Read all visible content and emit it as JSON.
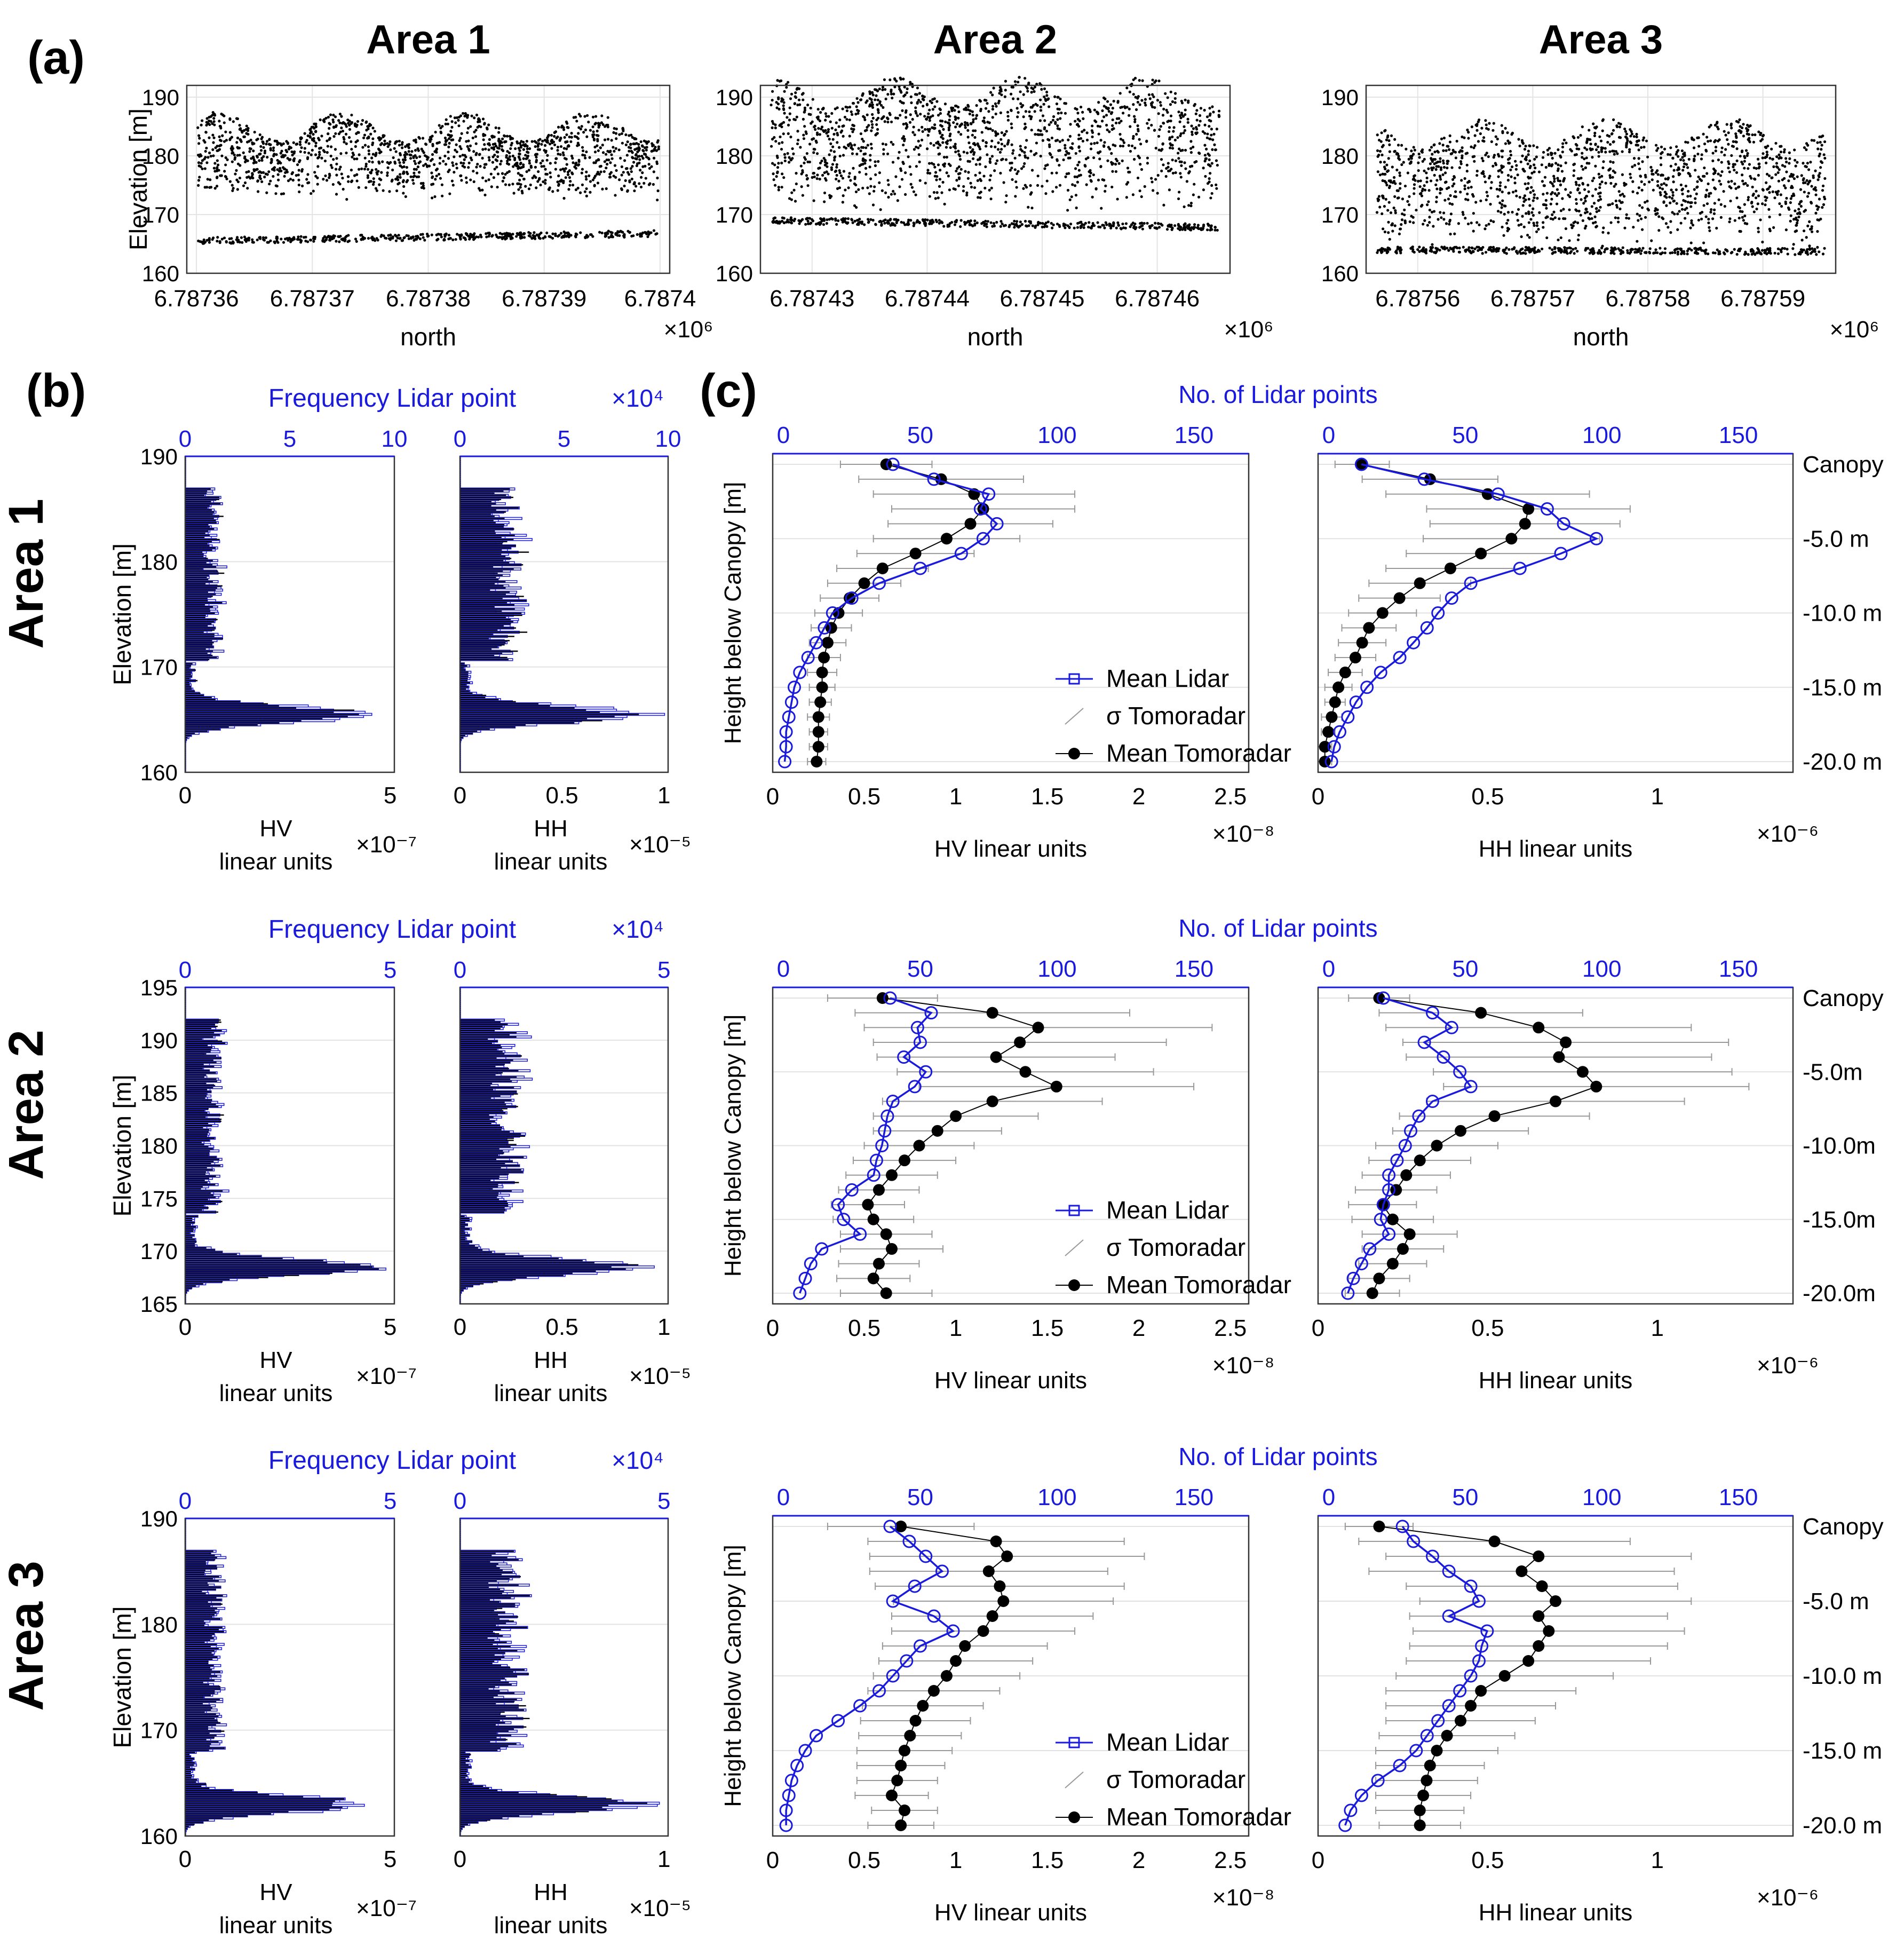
{
  "panel_labels": {
    "a": "(a)",
    "b": "(b)",
    "c": "(c)"
  },
  "row_labels": [
    "Area 1",
    "Area 2",
    "Area 3"
  ],
  "chart_data": [
    {
      "id": "a",
      "type": "scatter",
      "titles": [
        "Area 1",
        "Area 2",
        "Area 3"
      ],
      "xlabel": "north",
      "ylabel": "Elevation [m]",
      "x_multiplier": "×10⁶",
      "ylim": [
        160,
        192
      ],
      "yticks": [
        "160",
        "170",
        "180",
        "190"
      ],
      "xticks": [
        [
          "6.78736",
          "6.78737",
          "6.78738",
          "6.78739",
          "6.7874"
        ],
        [
          "6.78743",
          "6.78744",
          "6.78745",
          "6.78746"
        ],
        [
          "6.78756",
          "6.78757",
          "6.78758",
          "6.78759"
        ]
      ],
      "ground_elevation": [
        165.5,
        169.0,
        164.0
      ],
      "canopy_band": [
        [
          172,
          187
        ],
        [
          170,
          193
        ],
        [
          164,
          186
        ]
      ]
    },
    {
      "id": "b",
      "type": "bar",
      "top_label": "Frequency Lidar point",
      "top_multiplier": "×10⁴",
      "ylabel": "Elevation [m]",
      "linear_units": "linear units",
      "hv_label": "HV",
      "hh_label": "HH",
      "areas": [
        {
          "name": "Area 1",
          "ylim": [
            160,
            190
          ],
          "yticks": [
            "160",
            "170",
            "180",
            "190"
          ],
          "top_ticks": [
            "0",
            "5",
            "10"
          ],
          "hv_ticks": [
            "0",
            "5"
          ],
          "hv_mult": "×10⁻⁷",
          "hh_ticks": [
            "0",
            "0.5",
            "1"
          ],
          "hh_mult": "×10⁻⁵",
          "ground_peak": 165.5
        },
        {
          "name": "Area 2",
          "ylim": [
            165,
            195
          ],
          "yticks": [
            "165",
            "170",
            "175",
            "180",
            "185",
            "190",
            "195"
          ],
          "top_ticks": [
            "0",
            "5"
          ],
          "hv_ticks": [
            "0",
            "5"
          ],
          "hv_mult": "×10⁻⁷",
          "hh_ticks": [
            "0",
            "0.5",
            "1"
          ],
          "hh_mult": "×10⁻⁵",
          "ground_peak": 168.5
        },
        {
          "name": "Area 3",
          "ylim": [
            160,
            190
          ],
          "yticks": [
            "160",
            "170",
            "180",
            "190"
          ],
          "top_ticks": [
            "0",
            "5"
          ],
          "hv_ticks": [
            "0",
            "5"
          ],
          "hv_mult": "×10⁻⁷",
          "hh_ticks": [
            "0",
            "1"
          ],
          "hh_mult": "×10⁻⁵",
          "ground_peak": 163.0
        }
      ]
    },
    {
      "id": "c",
      "type": "line",
      "ylabel": "Height below Canopy [m]",
      "top_labels": [
        "No. of Lidar points",
        "No. of Lidar points",
        "No. of Lidar points"
      ],
      "top_ticks": [
        "0",
        "50",
        "100",
        "150"
      ],
      "hv_xlabel": "HV linear units",
      "hv_mult": "×10⁻⁸",
      "hh_xlabel": "HH linear units",
      "hh_mult": "×10⁻⁶",
      "hv_ticks": [
        "0",
        "0.5",
        "1",
        "1.5",
        "2",
        "2.5"
      ],
      "hh_ticks": [
        "0",
        "0.5",
        "1"
      ],
      "right_ticks": [
        [
          "Canopy",
          "-5.0 m",
          "-10.0 m",
          "-15.0 m",
          "-20.0 m"
        ],
        [
          "Canopy",
          "-5.0m",
          "-10.0m",
          "-15.0m",
          "-20.0m"
        ],
        [
          "Canopy",
          "-5.0 m",
          "-10.0 m",
          "-15.0 m",
          "-20.0 m"
        ]
      ],
      "legend": [
        "Mean Lidar",
        "σ Tomoradar",
        "Mean Tomoradar"
      ],
      "depths": [
        0,
        -1,
        -2,
        -3,
        -4,
        -5,
        -6,
        -7,
        -8,
        -9,
        -10,
        -11,
        -12,
        -13,
        -14,
        -15,
        -16,
        -17,
        -18,
        -19,
        -20
      ],
      "series": [
        {
          "area": "Area 1",
          "side": "HV",
          "lidar": [
            40,
            55,
            75,
            72,
            78,
            73,
            65,
            50,
            35,
            25,
            18,
            15,
            12,
            9,
            6,
            4,
            3,
            2,
            1,
            1,
            0.5
          ],
          "tomo_mean": [
            0.62,
            0.92,
            1.1,
            1.15,
            1.08,
            0.95,
            0.78,
            0.6,
            0.5,
            0.42,
            0.36,
            0.32,
            0.3,
            0.28,
            0.27,
            0.27,
            0.26,
            0.25,
            0.25,
            0.25,
            0.24
          ],
          "tomo_sd": [
            0.25,
            0.45,
            0.55,
            0.5,
            0.45,
            0.4,
            0.32,
            0.25,
            0.2,
            0.16,
            0.13,
            0.11,
            0.1,
            0.09,
            0.08,
            0.07,
            0.06,
            0.06,
            0.05,
            0.05,
            0.05
          ]
        },
        {
          "area": "Area 1",
          "side": "HH",
          "lidar": [
            12,
            35,
            62,
            80,
            86,
            98,
            85,
            70,
            52,
            45,
            40,
            36,
            31,
            26,
            19,
            14,
            10,
            7,
            4,
            2,
            1
          ],
          "tomo_mean": [
            0.13,
            0.33,
            0.5,
            0.62,
            0.61,
            0.57,
            0.48,
            0.39,
            0.3,
            0.24,
            0.19,
            0.15,
            0.13,
            0.11,
            0.08,
            0.06,
            0.05,
            0.04,
            0.03,
            0.02,
            0.02
          ],
          "tomo_sd": [
            0.08,
            0.2,
            0.3,
            0.3,
            0.28,
            0.26,
            0.22,
            0.19,
            0.15,
            0.12,
            0.1,
            0.08,
            0.07,
            0.06,
            0.05,
            0.04,
            0.03,
            0.03,
            0.02,
            0.02,
            0.02
          ]
        },
        {
          "area": "Area 2",
          "side": "HV",
          "lidar": [
            39,
            54,
            49,
            50,
            44,
            52,
            48,
            40,
            38,
            37,
            36,
            34,
            33,
            25,
            20,
            22,
            28,
            14,
            10,
            8,
            6
          ],
          "tomo_mean": [
            0.6,
            1.2,
            1.45,
            1.35,
            1.22,
            1.38,
            1.55,
            1.2,
            1.0,
            0.9,
            0.8,
            0.72,
            0.65,
            0.58,
            0.52,
            0.55,
            0.62,
            0.65,
            0.58,
            0.55,
            0.62
          ],
          "tomo_sd": [
            0.3,
            0.75,
            0.95,
            0.8,
            0.65,
            0.7,
            0.75,
            0.6,
            0.45,
            0.35,
            0.3,
            0.28,
            0.25,
            0.22,
            0.2,
            0.22,
            0.25,
            0.28,
            0.22,
            0.2,
            0.25
          ],
          "sparse_markers": true
        },
        {
          "area": "Area 2",
          "side": "HH",
          "lidar": [
            20,
            38,
            45,
            35,
            42,
            48,
            52,
            38,
            33,
            30,
            28,
            25,
            22,
            22,
            20,
            19,
            22,
            15,
            12,
            9,
            7
          ],
          "tomo_mean": [
            0.18,
            0.48,
            0.65,
            0.73,
            0.71,
            0.78,
            0.82,
            0.7,
            0.52,
            0.42,
            0.35,
            0.3,
            0.26,
            0.23,
            0.19,
            0.22,
            0.27,
            0.25,
            0.22,
            0.18,
            0.16
          ],
          "tomo_sd": [
            0.09,
            0.3,
            0.45,
            0.48,
            0.45,
            0.44,
            0.45,
            0.38,
            0.28,
            0.2,
            0.18,
            0.15,
            0.13,
            0.12,
            0.1,
            0.12,
            0.14,
            0.12,
            0.1,
            0.09,
            0.08
          ]
        },
        {
          "area": "Area 3",
          "side": "HV",
          "lidar": [
            39,
            46,
            52,
            58,
            48,
            40,
            55,
            62,
            50,
            45,
            40,
            35,
            28,
            20,
            12,
            8,
            5,
            3,
            2,
            1,
            1
          ],
          "tomo_mean": [
            0.7,
            1.22,
            1.28,
            1.18,
            1.24,
            1.26,
            1.2,
            1.15,
            1.05,
            1.0,
            0.95,
            0.88,
            0.82,
            0.78,
            0.75,
            0.72,
            0.7,
            0.68,
            0.65,
            0.72,
            0.7
          ],
          "tomo_sd": [
            0.4,
            0.7,
            0.75,
            0.65,
            0.68,
            0.6,
            0.55,
            0.5,
            0.45,
            0.42,
            0.4,
            0.36,
            0.33,
            0.3,
            0.28,
            0.26,
            0.24,
            0.22,
            0.2,
            0.18,
            0.18
          ]
        },
        {
          "area": "Area 3",
          "side": "HH",
          "lidar": [
            27,
            31,
            38,
            44,
            52,
            55,
            44,
            58,
            56,
            55,
            52,
            48,
            44,
            40,
            36,
            32,
            26,
            18,
            12,
            8,
            6
          ],
          "tomo_mean": [
            0.18,
            0.52,
            0.65,
            0.6,
            0.66,
            0.7,
            0.65,
            0.68,
            0.65,
            0.62,
            0.55,
            0.48,
            0.45,
            0.42,
            0.38,
            0.35,
            0.33,
            0.32,
            0.31,
            0.3,
            0.3
          ],
          "tomo_sd": [
            0.1,
            0.4,
            0.45,
            0.45,
            0.4,
            0.4,
            0.38,
            0.4,
            0.38,
            0.36,
            0.32,
            0.28,
            0.25,
            0.22,
            0.2,
            0.18,
            0.16,
            0.15,
            0.14,
            0.13,
            0.12
          ]
        }
      ]
    }
  ]
}
